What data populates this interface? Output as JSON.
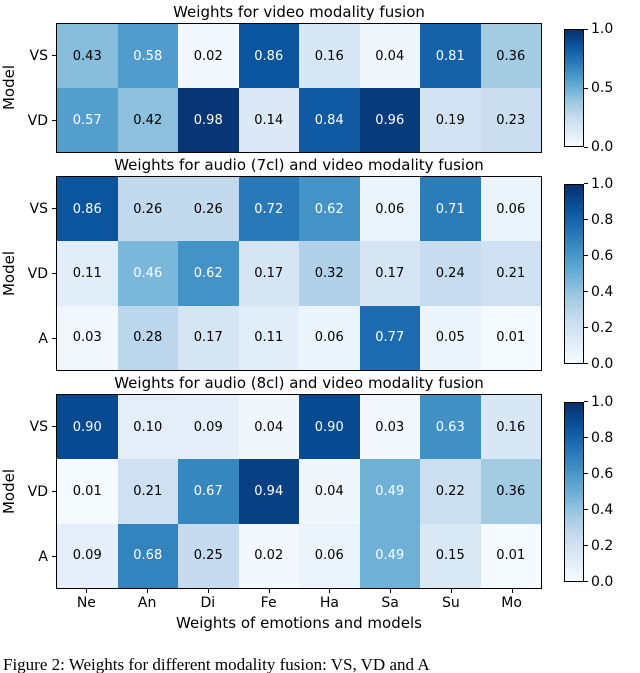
{
  "chart_data": [
    {
      "type": "heatmap",
      "title": "Weights for video modality fusion",
      "ylabel": "Model",
      "xlabel": "",
      "rows": [
        "VS",
        "VD"
      ],
      "columns": [
        "Ne",
        "An",
        "Di",
        "Fe",
        "Ha",
        "Sa",
        "Su",
        "Mo"
      ],
      "values": [
        [
          0.43,
          0.58,
          0.02,
          0.86,
          0.16,
          0.04,
          0.81,
          0.36
        ],
        [
          0.57,
          0.42,
          0.98,
          0.14,
          0.84,
          0.96,
          0.19,
          0.23
        ]
      ],
      "colormap": "Blues",
      "vmin": 0.0,
      "vmax": 1.0,
      "colorbar_ticks": [
        1.0,
        0.5,
        0.0
      ]
    },
    {
      "type": "heatmap",
      "title": "Weights for audio (7cl) and video modality fusion",
      "ylabel": "Model",
      "xlabel": "",
      "rows": [
        "VS",
        "VD",
        "A"
      ],
      "columns": [
        "Ne",
        "An",
        "Di",
        "Fe",
        "Ha",
        "Sa",
        "Su",
        "Mo"
      ],
      "values": [
        [
          0.86,
          0.26,
          0.26,
          0.72,
          0.62,
          0.06,
          0.71,
          0.06
        ],
        [
          0.11,
          0.46,
          0.62,
          0.17,
          0.32,
          0.17,
          0.24,
          0.21
        ],
        [
          0.03,
          0.28,
          0.17,
          0.11,
          0.06,
          0.77,
          0.05,
          0.01
        ]
      ],
      "colormap": "Blues",
      "vmin": 0.0,
      "vmax": 1.0,
      "colorbar_ticks": [
        1.0,
        0.8,
        0.6,
        0.4,
        0.2,
        0.0
      ]
    },
    {
      "type": "heatmap",
      "title": "Weights for audio (8cl) and video modality fusion",
      "ylabel": "Model",
      "xlabel": "Weights of emotions and models",
      "rows": [
        "VS",
        "VD",
        "A"
      ],
      "columns": [
        "Ne",
        "An",
        "Di",
        "Fe",
        "Ha",
        "Sa",
        "Su",
        "Mo"
      ],
      "values": [
        [
          0.9,
          0.1,
          0.09,
          0.04,
          0.9,
          0.03,
          0.63,
          0.16
        ],
        [
          0.01,
          0.21,
          0.67,
          0.94,
          0.04,
          0.49,
          0.22,
          0.36
        ],
        [
          0.09,
          0.68,
          0.25,
          0.02,
          0.06,
          0.49,
          0.15,
          0.01
        ]
      ],
      "colormap": "Blues",
      "vmin": 0.0,
      "vmax": 1.0,
      "colorbar_ticks": [
        1.0,
        0.8,
        0.6,
        0.4,
        0.2,
        0.0
      ]
    }
  ],
  "text_color_threshold": 0.44,
  "caption": "Figure 2: Weights for different modality fusion: VS, VD and A"
}
